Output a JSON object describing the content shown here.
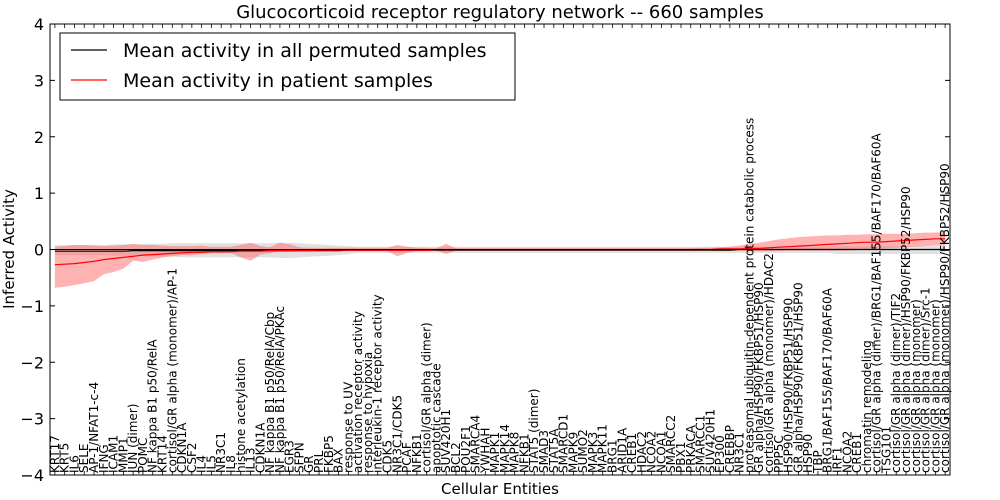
{
  "chart_data": {
    "type": "line",
    "title": "Glucocorticoid receptor regulatory network -- 660 samples",
    "xlabel": "Cellular Entities",
    "ylabel": "Inferred Activity",
    "ylim": [
      -4,
      4
    ],
    "yticks": [
      -4,
      -3,
      -2,
      -1,
      0,
      1,
      2,
      3,
      4
    ],
    "grid": false,
    "legend": {
      "placement": "top-left",
      "entries": [
        {
          "label": "Mean activity in all permuted samples",
          "color": "#000000"
        },
        {
          "label": "Mean activity in patient samples",
          "color": "#ff0000"
        }
      ]
    },
    "band_colors": {
      "permuted": "#bdbdbd",
      "patient": "#ff6666"
    },
    "categories": [
      "KRT17",
      "KRT5",
      "IL6",
      "SELE",
      "AP-1/NFAT1-c-4",
      "IFNG",
      "ICAM1",
      "MMP1",
      "JUN (dimer)",
      "POMC",
      "NF kappa B1 p50/RelA",
      "KRT14",
      "cortisol/GR alpha (monomer)/AP-1",
      "CDKN1A",
      "CSF2",
      "IL4",
      "IL5",
      "NR3C1",
      "IL8",
      "histone acetylation",
      "IL13",
      "CDKN1A",
      "NF kappa B1 p50/RelA/Cbp",
      "NF kappa B1 p50/RelA/PKAc",
      "EGR3",
      "SFPN",
      "GR",
      "PRL",
      "FKBP5",
      "BAX",
      "response to UV",
      "activation receptor activity",
      "response to hypoxia",
      "interleukin-1 receptor activity",
      "CDK5",
      "NR3C1/CDK5",
      "PCAF",
      "NFKB1",
      "cortisol/GR alpha (dimer)",
      "apoptotic cascade",
      "SUV420H1",
      "BCL2",
      "POU2F1",
      "SMARCA4",
      "YWHAH",
      "MAPK1",
      "MAPK14",
      "MAPK8",
      "NFKB1",
      "STAT5 (dimer)",
      "SMAD3",
      "STAT5A",
      "SMARCD1",
      "MAPK9",
      "SUMO2",
      "MAPK3",
      "MAPK11",
      "BRG1",
      "ARID1A",
      "CREB1",
      "HDAC2",
      "NCOA2",
      "NCOA1",
      "SMARCC2",
      "PBX1",
      "PRKACA",
      "SMARCC1",
      "SUV420H1",
      "EP300",
      "CREBBP",
      "NR3C1",
      "proteasomal ubiquitin-dependent protein catabolic process",
      "GR alpha/HSP90/FKBP51/HSP90",
      "cortisol/GR alpha (monomer)/HDAC2",
      "PPP5C",
      "HSP90/HSP90/FKBP51/HSP90",
      "GR alpha/HSP90/FKBP51/HSP90",
      "HSP90",
      "TBP",
      "BRG1/BAF155/BAF170/BAF60A",
      "IRF1",
      "NCOA2",
      "CREB1",
      "chromatin remodeling",
      "cortisol/GR alpha (dimer)/BRG1/BAF155/BAF170/BAF60A",
      "TSG101",
      "cortisol/GR alpha (dimer)/TIF2",
      "cortisol/GR alpha (dimer)/HSP90/FKBP52/HSP90",
      "cortisol/GR alpha (monomer)",
      "cortisol/GR alpha (dimer)/Src-1",
      "cortisol/GR alpha (monomer)",
      "cortisol/GR alpha (monomer)/HSP90/FKBP52/HSP90"
    ],
    "series": [
      {
        "name": "Mean activity in all permuted samples",
        "color": "#000000",
        "values": [
          -0.03,
          -0.03,
          -0.03,
          -0.03,
          -0.03,
          -0.03,
          -0.03,
          -0.03,
          -0.02,
          -0.02,
          -0.02,
          -0.02,
          -0.02,
          -0.02,
          -0.02,
          -0.02,
          -0.02,
          -0.02,
          -0.02,
          -0.02,
          -0.02,
          -0.02,
          -0.02,
          -0.02,
          -0.02,
          -0.02,
          -0.02,
          -0.02,
          -0.02,
          -0.02,
          -0.01,
          -0.01,
          -0.01,
          -0.01,
          -0.01,
          -0.01,
          -0.01,
          -0.01,
          -0.01,
          -0.01,
          -0.01,
          -0.01,
          -0.01,
          -0.01,
          -0.01,
          -0.01,
          -0.01,
          -0.01,
          -0.01,
          -0.01,
          -0.01,
          -0.01,
          -0.01,
          -0.01,
          -0.01,
          -0.01,
          -0.01,
          -0.01,
          -0.01,
          -0.01,
          -0.01,
          -0.01,
          -0.01,
          -0.01,
          -0.01,
          -0.01,
          -0.01,
          -0.01,
          -0.01,
          -0.01,
          0.0,
          0.0,
          0.0,
          0.0,
          0.0,
          0.0,
          0.0,
          0.0,
          0.0,
          0.0,
          0.0,
          0.0,
          0.0,
          0.0,
          0.0,
          0.0,
          0.0,
          0.0,
          0.0,
          0.0,
          0.0,
          0.0
        ],
        "band_low": [
          -0.1,
          -0.1,
          -0.1,
          -0.1,
          -0.1,
          -0.1,
          -0.11,
          -0.11,
          -0.11,
          -0.12,
          -0.12,
          -0.13,
          -0.13,
          -0.14,
          -0.14,
          -0.14,
          -0.14,
          -0.14,
          -0.14,
          -0.14,
          -0.14,
          -0.14,
          -0.14,
          -0.15,
          -0.15,
          -0.14,
          -0.13,
          -0.12,
          -0.11,
          -0.1,
          -0.08,
          -0.06,
          -0.06,
          -0.06,
          -0.06,
          -0.06,
          -0.06,
          -0.06,
          -0.06,
          -0.06,
          -0.06,
          -0.06,
          -0.06,
          -0.06,
          -0.06,
          -0.06,
          -0.06,
          -0.06,
          -0.06,
          -0.06,
          -0.06,
          -0.06,
          -0.06,
          -0.06,
          -0.06,
          -0.06,
          -0.06,
          -0.06,
          -0.06,
          -0.06,
          -0.06,
          -0.06,
          -0.06,
          -0.06,
          -0.06,
          -0.06,
          -0.06,
          -0.06,
          -0.06,
          -0.06,
          -0.06,
          -0.06,
          -0.06,
          -0.06,
          -0.06,
          -0.06,
          -0.06,
          -0.06,
          -0.06,
          -0.06,
          -0.08,
          -0.08,
          -0.08,
          -0.08,
          -0.08,
          -0.08,
          -0.08,
          -0.08,
          -0.08,
          -0.08,
          -0.08,
          -0.08
        ],
        "band_high": [
          0.08,
          0.08,
          0.08,
          0.08,
          0.08,
          0.08,
          0.09,
          0.09,
          0.09,
          0.1,
          0.1,
          0.1,
          0.11,
          0.11,
          0.11,
          0.11,
          0.11,
          0.11,
          0.11,
          0.11,
          0.11,
          0.11,
          0.11,
          0.12,
          0.12,
          0.11,
          0.1,
          0.09,
          0.08,
          0.07,
          0.06,
          0.05,
          0.05,
          0.05,
          0.05,
          0.05,
          0.05,
          0.05,
          0.05,
          0.05,
          0.05,
          0.05,
          0.05,
          0.05,
          0.05,
          0.05,
          0.05,
          0.05,
          0.05,
          0.05,
          0.05,
          0.05,
          0.05,
          0.05,
          0.05,
          0.05,
          0.05,
          0.05,
          0.05,
          0.05,
          0.05,
          0.05,
          0.05,
          0.05,
          0.05,
          0.05,
          0.05,
          0.05,
          0.05,
          0.05,
          0.05,
          0.05,
          0.05,
          0.05,
          0.05,
          0.05,
          0.05,
          0.05,
          0.05,
          0.05,
          0.06,
          0.06,
          0.06,
          0.06,
          0.06,
          0.06,
          0.06,
          0.06,
          0.06,
          0.06,
          0.06,
          0.06
        ]
      },
      {
        "name": "Mean activity in patient samples",
        "color": "#ff0000",
        "values": [
          -0.27,
          -0.26,
          -0.25,
          -0.23,
          -0.21,
          -0.18,
          -0.16,
          -0.14,
          -0.12,
          -0.1,
          -0.09,
          -0.08,
          -0.07,
          -0.06,
          -0.05,
          -0.05,
          -0.04,
          -0.04,
          -0.04,
          -0.03,
          -0.03,
          -0.03,
          -0.02,
          -0.02,
          -0.02,
          -0.02,
          -0.02,
          -0.01,
          -0.01,
          -0.01,
          -0.01,
          -0.01,
          -0.01,
          -0.01,
          -0.01,
          -0.01,
          -0.01,
          -0.01,
          -0.01,
          0.0,
          0.0,
          0.0,
          0.0,
          0.0,
          0.0,
          0.0,
          0.0,
          0.0,
          0.0,
          0.0,
          0.0,
          0.0,
          0.0,
          0.0,
          0.0,
          0.0,
          0.0,
          0.0,
          0.0,
          0.0,
          0.0,
          0.0,
          0.0,
          0.0,
          0.0,
          0.0,
          0.0,
          0.0,
          0.01,
          0.01,
          0.01,
          0.02,
          0.02,
          0.03,
          0.04,
          0.05,
          0.06,
          0.07,
          0.08,
          0.09,
          0.1,
          0.11,
          0.12,
          0.13,
          0.13,
          0.14,
          0.15,
          0.16,
          0.17,
          0.18,
          0.19,
          0.19
        ],
        "band_low": [
          -0.68,
          -0.66,
          -0.63,
          -0.6,
          -0.56,
          -0.44,
          -0.4,
          -0.34,
          -0.2,
          -0.22,
          -0.18,
          -0.14,
          -0.12,
          -0.1,
          -0.1,
          -0.08,
          -0.07,
          -0.07,
          -0.06,
          -0.14,
          -0.2,
          -0.09,
          -0.06,
          -0.04,
          -0.04,
          -0.03,
          -0.03,
          -0.03,
          -0.03,
          -0.03,
          -0.03,
          -0.03,
          -0.03,
          -0.03,
          -0.03,
          -0.12,
          -0.06,
          -0.03,
          -0.03,
          -0.02,
          -0.08,
          -0.02,
          -0.02,
          -0.02,
          -0.02,
          -0.02,
          -0.02,
          -0.02,
          -0.02,
          -0.02,
          -0.02,
          -0.02,
          -0.02,
          -0.02,
          -0.02,
          -0.02,
          -0.02,
          -0.02,
          -0.02,
          -0.02,
          -0.02,
          -0.02,
          -0.02,
          -0.02,
          -0.02,
          -0.02,
          -0.02,
          -0.02,
          -0.02,
          -0.02,
          -0.02,
          -0.03,
          -0.03,
          -0.03,
          -0.03,
          -0.02,
          -0.02,
          -0.02,
          -0.02,
          -0.02,
          -0.02,
          -0.02,
          -0.01,
          0.0,
          0.01,
          0.02,
          0.03,
          0.04,
          0.05,
          0.06,
          0.07,
          0.07
        ],
        "band_high": [
          0.05,
          0.06,
          0.08,
          0.08,
          0.07,
          0.06,
          0.07,
          0.08,
          0.1,
          0.08,
          0.08,
          0.07,
          0.06,
          0.06,
          0.06,
          0.07,
          0.05,
          0.05,
          0.05,
          0.08,
          0.12,
          0.06,
          0.04,
          0.12,
          0.09,
          0.04,
          0.03,
          0.03,
          0.03,
          0.03,
          0.03,
          0.03,
          0.03,
          0.03,
          0.03,
          0.08,
          0.05,
          0.03,
          0.03,
          0.02,
          0.1,
          0.02,
          0.02,
          0.02,
          0.02,
          0.02,
          0.02,
          0.02,
          0.02,
          0.02,
          0.02,
          0.02,
          0.02,
          0.02,
          0.02,
          0.02,
          0.02,
          0.02,
          0.02,
          0.02,
          0.02,
          0.02,
          0.02,
          0.02,
          0.02,
          0.02,
          0.03,
          0.03,
          0.04,
          0.05,
          0.07,
          0.1,
          0.12,
          0.15,
          0.18,
          0.2,
          0.22,
          0.23,
          0.24,
          0.25,
          0.25,
          0.26,
          0.26,
          0.27,
          0.27,
          0.28,
          0.28,
          0.28,
          0.29,
          0.3,
          0.3,
          0.31
        ]
      }
    ]
  }
}
